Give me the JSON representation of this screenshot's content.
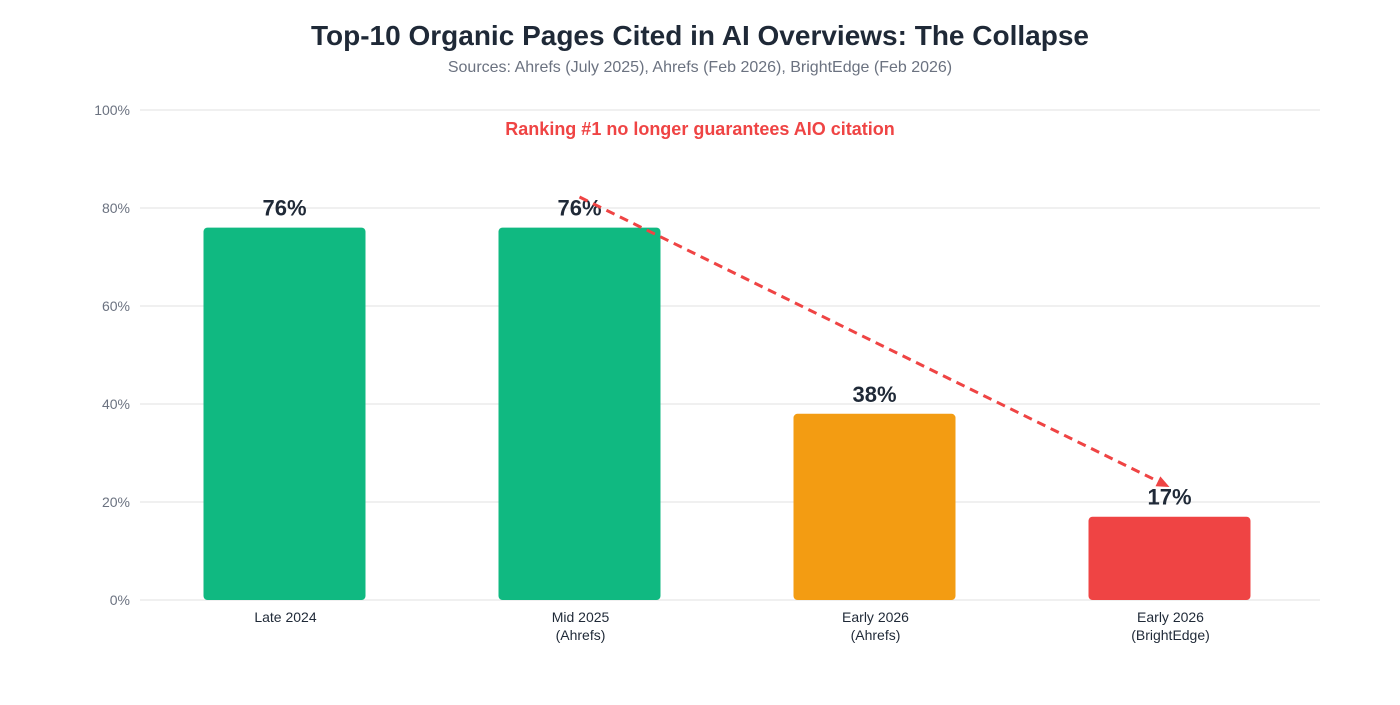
{
  "chart_data": {
    "type": "bar",
    "title": "Top-10 Organic Pages Cited in AI Overviews: The Collapse",
    "subtitle": "Sources: Ahrefs (July 2025), Ahrefs (Feb 2026), BrightEdge (Feb 2026)",
    "categories": [
      [
        "Late 2024"
      ],
      [
        "Mid 2025",
        "(Ahrefs)"
      ],
      [
        "Early 2026",
        "(Ahrefs)"
      ],
      [
        "Early 2026",
        "(BrightEdge)"
      ]
    ],
    "values": [
      76,
      76,
      38,
      17
    ],
    "data_labels": [
      "76%",
      "76%",
      "38%",
      "17%"
    ],
    "colors": [
      "#10b981",
      "#10b981",
      "#f39c12",
      "#ef4444"
    ],
    "ylim": [
      0,
      100
    ],
    "yticks": [
      0,
      20,
      40,
      60,
      80,
      100
    ],
    "ytick_labels": [
      "0%",
      "20%",
      "40%",
      "60%",
      "80%",
      "100%"
    ],
    "grid": true,
    "annotation": {
      "text": "Ranking #1 no longer guarantees AIO citation",
      "color": "#ef4444"
    },
    "trend_arrow": {
      "from_category": 1,
      "to_category": 3,
      "style": "dashed",
      "color": "#ef4444"
    }
  }
}
